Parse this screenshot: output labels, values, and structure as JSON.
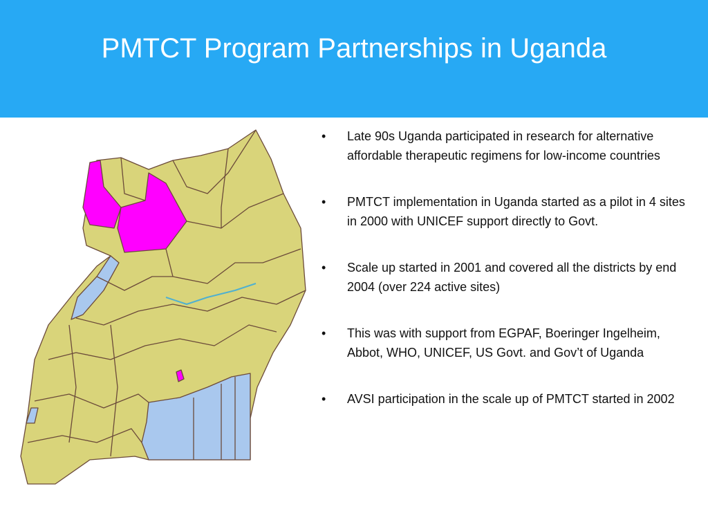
{
  "header": {
    "title": "PMTCT Program Partnerships in Uganda"
  },
  "bullets": [
    "Late 90s Uganda participated in research for alternative affordable therapeutic regimens for low-income countries",
    "PMTCT implementation in Uganda started as a pilot in 4 sites in 2000 with UNICEF support directly to Govt.",
    "Scale up started in 2001 and covered all the districts by end 2004 (over 224 active sites)",
    "This was with support from EGPAF, Boeringer Ingelheim, Abbot,  WHO, UNICEF, US Govt. and Gov’t of Uganda",
    "AVSI participation in the scale up of PMTCT started in 2002"
  ]
}
